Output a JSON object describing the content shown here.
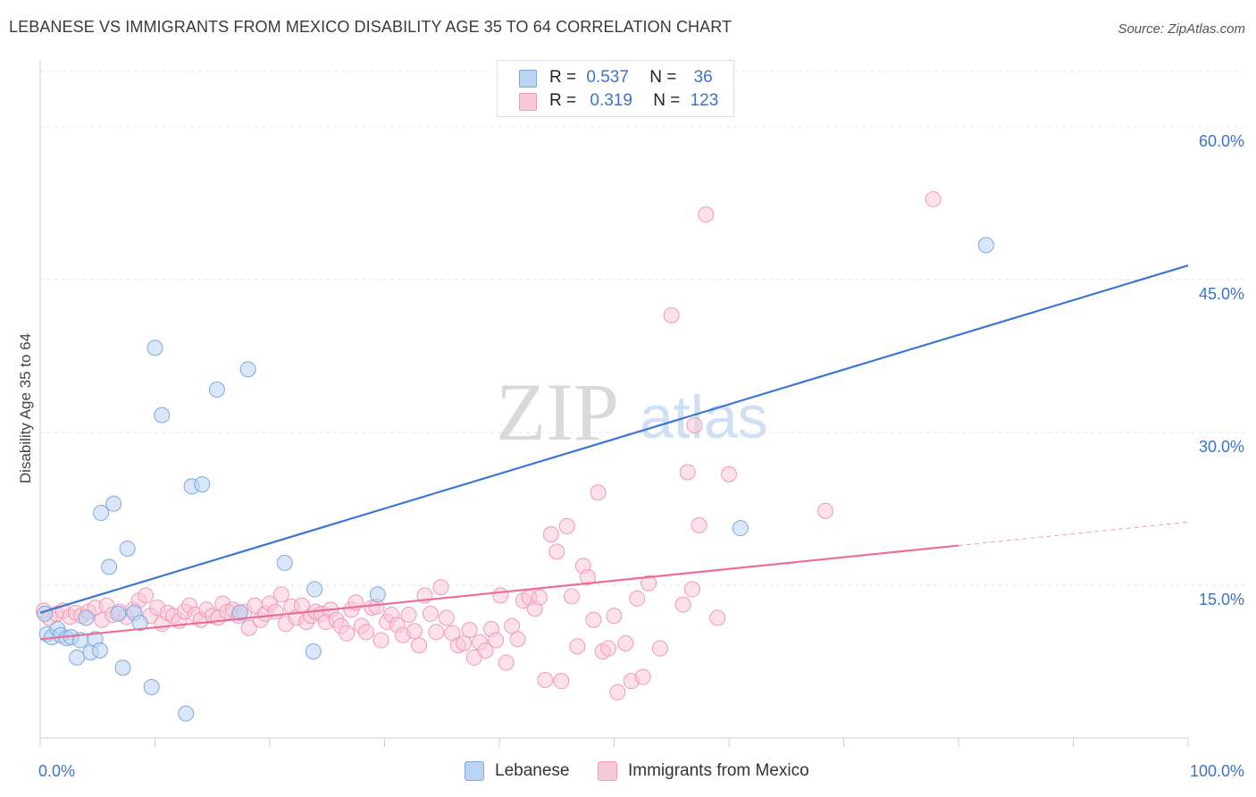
{
  "title": "LEBANESE VS IMMIGRANTS FROM MEXICO DISABILITY AGE 35 TO 64 CORRELATION CHART",
  "source": "Source: ZipAtlas.com",
  "watermark": {
    "zip": "ZIP",
    "atlas": "atlas"
  },
  "legend": {
    "r_label": "R =",
    "n_label": "N =",
    "rows": [
      {
        "name": "Lebanese",
        "r": "0.537",
        "n": "36",
        "fill": "#b9d3f3",
        "stroke": "#7fa8e0"
      },
      {
        "name": "Immigrants from Mexico",
        "r": "0.319",
        "n": "123",
        "fill": "#f9c8d7",
        "stroke": "#ef9ab7"
      }
    ]
  },
  "chart_data": {
    "type": "scatter",
    "title": "LEBANESE VS IMMIGRANTS FROM MEXICO DISABILITY AGE 35 TO 64 CORRELATION CHART",
    "xlabel": "",
    "ylabel": "Disability Age 35 to 64",
    "xlim": [
      0,
      100
    ],
    "ylim": [
      0,
      60
    ],
    "x_tick_labels": [
      "0.0%",
      "100.0%"
    ],
    "y_ticks": [
      15,
      30,
      45,
      60
    ],
    "y_tick_labels": [
      "15.0%",
      "30.0%",
      "45.0%",
      "60.0%"
    ],
    "grid": true,
    "legend_position": "top-center",
    "series": [
      {
        "name": "Lebanese",
        "color": "#3a78d4",
        "fill": "#b9d3f3",
        "trend": {
          "x": [
            0,
            100
          ],
          "y": [
            12.3,
            46.4
          ]
        },
        "points": [
          [
            0.4,
            12.2
          ],
          [
            0.6,
            10.2
          ],
          [
            1.0,
            9.9
          ],
          [
            1.5,
            10.7
          ],
          [
            1.8,
            10.1
          ],
          [
            2.3,
            9.8
          ],
          [
            2.7,
            9.9
          ],
          [
            3.2,
            7.9
          ],
          [
            3.5,
            9.6
          ],
          [
            4.0,
            11.8
          ],
          [
            4.4,
            8.4
          ],
          [
            4.8,
            9.7
          ],
          [
            5.2,
            8.6
          ],
          [
            5.3,
            22.1
          ],
          [
            6.0,
            16.8
          ],
          [
            6.4,
            23.0
          ],
          [
            6.8,
            12.2
          ],
          [
            7.2,
            6.9
          ],
          [
            7.6,
            18.6
          ],
          [
            8.2,
            12.3
          ],
          [
            8.7,
            11.3
          ],
          [
            9.7,
            5.0
          ],
          [
            10.0,
            38.3
          ],
          [
            10.6,
            31.7
          ],
          [
            12.7,
            2.4
          ],
          [
            13.2,
            24.7
          ],
          [
            14.1,
            24.9
          ],
          [
            15.4,
            34.2
          ],
          [
            17.4,
            12.3
          ],
          [
            18.1,
            36.2
          ],
          [
            21.3,
            17.2
          ],
          [
            23.8,
            8.5
          ],
          [
            23.9,
            14.6
          ],
          [
            29.4,
            14.1
          ],
          [
            61.0,
            20.6
          ],
          [
            82.4,
            48.4
          ]
        ]
      },
      {
        "name": "Immigrants from Mexico",
        "color": "#e96f9a",
        "fill": "#f9c8d7",
        "trend": {
          "x": [
            0,
            80
          ],
          "y": [
            9.7,
            18.9
          ]
        },
        "trend_dashed": {
          "x": [
            80,
            100
          ],
          "y": [
            18.9,
            21.2
          ]
        },
        "points": [
          [
            0.3,
            12.5
          ],
          [
            0.8,
            11.8
          ],
          [
            1.4,
            12.2
          ],
          [
            2.0,
            12.5
          ],
          [
            2.6,
            11.9
          ],
          [
            3.1,
            12.3
          ],
          [
            3.6,
            12.0
          ],
          [
            4.2,
            12.4
          ],
          [
            4.8,
            12.8
          ],
          [
            5.4,
            11.6
          ],
          [
            5.8,
            13.0
          ],
          [
            6.3,
            12.1
          ],
          [
            6.9,
            12.4
          ],
          [
            7.5,
            11.9
          ],
          [
            8.1,
            12.6
          ],
          [
            8.6,
            13.5
          ],
          [
            9.2,
            14.0
          ],
          [
            9.6,
            12.0
          ],
          [
            10.2,
            12.8
          ],
          [
            10.6,
            11.2
          ],
          [
            11.1,
            12.3
          ],
          [
            11.6,
            12.0
          ],
          [
            12.1,
            11.5
          ],
          [
            12.6,
            12.4
          ],
          [
            13.0,
            13.0
          ],
          [
            13.5,
            12.1
          ],
          [
            14.0,
            11.6
          ],
          [
            14.5,
            12.6
          ],
          [
            15.0,
            12.0
          ],
          [
            15.5,
            11.8
          ],
          [
            15.9,
            13.2
          ],
          [
            16.3,
            12.4
          ],
          [
            16.8,
            12.6
          ],
          [
            17.3,
            12.0
          ],
          [
            17.8,
            12.4
          ],
          [
            18.2,
            10.8
          ],
          [
            18.7,
            13.0
          ],
          [
            19.2,
            11.6
          ],
          [
            19.6,
            12.2
          ],
          [
            20.0,
            13.2
          ],
          [
            20.5,
            12.4
          ],
          [
            21.0,
            14.1
          ],
          [
            21.4,
            11.2
          ],
          [
            21.9,
            12.9
          ],
          [
            22.3,
            11.8
          ],
          [
            22.8,
            13.0
          ],
          [
            23.2,
            11.4
          ],
          [
            23.6,
            12.0
          ],
          [
            24.0,
            12.4
          ],
          [
            24.5,
            12.2
          ],
          [
            24.9,
            11.4
          ],
          [
            25.3,
            12.6
          ],
          [
            25.8,
            11.6
          ],
          [
            26.2,
            11.0
          ],
          [
            26.7,
            10.3
          ],
          [
            27.1,
            12.6
          ],
          [
            27.5,
            13.3
          ],
          [
            28.0,
            11.0
          ],
          [
            28.4,
            10.4
          ],
          [
            28.9,
            12.8
          ],
          [
            29.3,
            12.9
          ],
          [
            29.7,
            9.6
          ],
          [
            30.2,
            11.4
          ],
          [
            30.6,
            12.1
          ],
          [
            31.1,
            11.1
          ],
          [
            31.6,
            10.1
          ],
          [
            32.1,
            12.1
          ],
          [
            32.6,
            10.5
          ],
          [
            33.0,
            9.1
          ],
          [
            33.5,
            14.0
          ],
          [
            34.0,
            12.2
          ],
          [
            34.5,
            10.4
          ],
          [
            34.9,
            14.8
          ],
          [
            35.4,
            11.8
          ],
          [
            35.9,
            10.3
          ],
          [
            36.4,
            9.1
          ],
          [
            36.9,
            9.3
          ],
          [
            37.4,
            10.6
          ],
          [
            37.8,
            7.9
          ],
          [
            38.3,
            9.4
          ],
          [
            38.8,
            8.6
          ],
          [
            39.3,
            10.7
          ],
          [
            39.7,
            9.6
          ],
          [
            40.1,
            14.0
          ],
          [
            40.6,
            7.4
          ],
          [
            41.1,
            11.0
          ],
          [
            41.6,
            9.7
          ],
          [
            42.1,
            13.5
          ],
          [
            42.6,
            13.8
          ],
          [
            43.1,
            12.7
          ],
          [
            43.5,
            13.8
          ],
          [
            44.0,
            5.7
          ],
          [
            44.5,
            20.0
          ],
          [
            45.0,
            18.3
          ],
          [
            45.4,
            5.6
          ],
          [
            45.9,
            20.8
          ],
          [
            46.3,
            13.9
          ],
          [
            46.8,
            9.0
          ],
          [
            47.3,
            16.9
          ],
          [
            47.7,
            15.8
          ],
          [
            48.2,
            11.6
          ],
          [
            48.6,
            24.1
          ],
          [
            49.0,
            8.5
          ],
          [
            49.5,
            8.8
          ],
          [
            50.0,
            12.0
          ],
          [
            50.3,
            4.5
          ],
          [
            51.0,
            9.3
          ],
          [
            51.5,
            5.6
          ],
          [
            52.0,
            13.7
          ],
          [
            52.5,
            6.0
          ],
          [
            53.0,
            15.2
          ],
          [
            54.0,
            8.8
          ],
          [
            55.0,
            41.5
          ],
          [
            56.0,
            13.1
          ],
          [
            56.4,
            26.1
          ],
          [
            56.8,
            14.6
          ],
          [
            57.0,
            30.7
          ],
          [
            57.4,
            20.9
          ],
          [
            58.0,
            51.4
          ],
          [
            59.0,
            11.8
          ],
          [
            60.0,
            25.9
          ],
          [
            68.4,
            22.3
          ],
          [
            77.8,
            52.9
          ]
        ]
      }
    ]
  }
}
